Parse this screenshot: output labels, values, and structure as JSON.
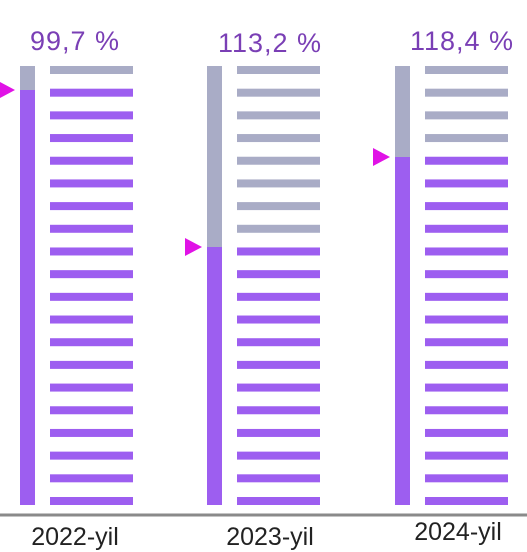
{
  "columns": [
    {
      "value_label": "99,7 %",
      "year": "2022-yil"
    },
    {
      "value_label": "113,2 %",
      "year": "2023-yil"
    },
    {
      "value_label": "118,4 %",
      "year": "2024-yil"
    }
  ]
}
